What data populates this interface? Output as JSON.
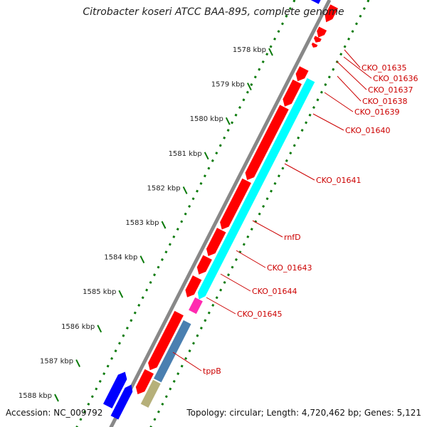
{
  "title": "Citrobacter koseri ATCC BAA-895, complete genome",
  "footer": {
    "accession": "Accession: NC_009792",
    "summary": "Topology: circular; Length: 4,720,462 bp; Genes: 5,121"
  },
  "colors": {
    "forward_cds": "#ff0000",
    "reverse_cds": "#0000ff",
    "backbone": "#888888",
    "gc_track": "#0a7a0a",
    "label": "#cc0000",
    "tick_label": "#222222",
    "cyan_feature": "#00ffff",
    "magenta_feature": "#ff2ab0",
    "steelblue_feature": "#4a7fb0",
    "khaki_feature": "#b6b07a"
  },
  "ticks": [
    {
      "label": "1578 kbp",
      "pos_kbp": 1578
    },
    {
      "label": "1579 kbp",
      "pos_kbp": 1579
    },
    {
      "label": "1580 kbp",
      "pos_kbp": 1580
    },
    {
      "label": "1581 kbp",
      "pos_kbp": 1581
    },
    {
      "label": "1582 kbp",
      "pos_kbp": 1582
    },
    {
      "label": "1583 kbp",
      "pos_kbp": 1583
    },
    {
      "label": "1584 kbp",
      "pos_kbp": 1584
    },
    {
      "label": "1585 kbp",
      "pos_kbp": 1585
    },
    {
      "label": "1586 kbp",
      "pos_kbp": 1586
    },
    {
      "label": "1587 kbp",
      "pos_kbp": 1587
    },
    {
      "label": "1588 kbp",
      "pos_kbp": 1588
    }
  ],
  "genes": [
    {
      "name": "CKO_01635"
    },
    {
      "name": "CKO_01636"
    },
    {
      "name": "CKO_01637"
    },
    {
      "name": "CKO_01638"
    },
    {
      "name": "CKO_01639"
    },
    {
      "name": "CKO_01640"
    },
    {
      "name": "CKO_01641"
    },
    {
      "name": "rnfD"
    },
    {
      "name": "CKO_01643"
    },
    {
      "name": "CKO_01644"
    },
    {
      "name": "CKO_01645"
    },
    {
      "name": "tppB"
    }
  ]
}
